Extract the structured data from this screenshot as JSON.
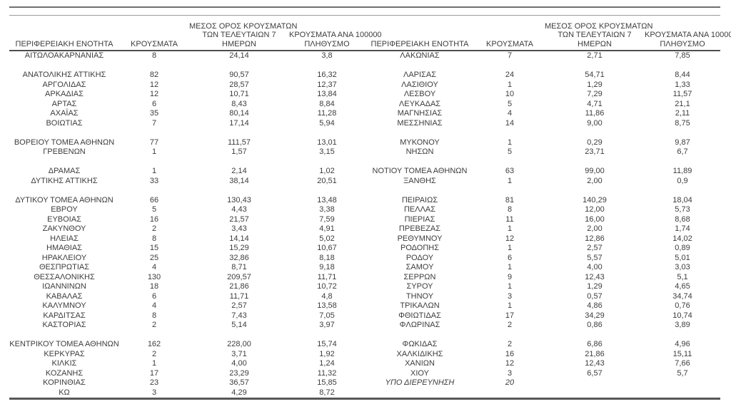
{
  "table": {
    "headers": {
      "region": "ΠΕΡΙΦΕΡΕΙΑΚΗ ΕΝΟΤΗΤΑ",
      "cases": "ΚΡΟΥΣΜΑΤΑ",
      "avg7_line1": "ΜΕΣΟΣ ΟΡΟΣ ΚΡΟΥΣΜΑΤΩΝ",
      "avg7_line2": "ΤΩΝ ΤΕΛΕΥΤΑΙΩΝ 7",
      "avg7_line3": "ΗΜΕΡΩΝ",
      "per100k_line1": "ΚΡΟΥΣΜΑΤΑ ΑΝΑ 100000",
      "per100k_line2": "ΠΛΗΘΥΣΜΟ"
    },
    "left_rows": [
      [
        "ΑΙΤΩΛΟΑΚΑΡΝΑΝΙΑΣ",
        "8",
        "24,14",
        "3,8"
      ],
      [],
      [
        "ΑΝΑΤΟΛΙΚΗΣ ΑΤΤΙΚΗΣ",
        "82",
        "90,57",
        "16,32"
      ],
      [
        "ΑΡΓΟΛΙΔΑΣ",
        "12",
        "28,57",
        "12,37"
      ],
      [
        "ΑΡΚΑΔΙΑΣ",
        "12",
        "10,71",
        "13,84"
      ],
      [
        "ΑΡΤΑΣ",
        "6",
        "8,43",
        "8,84"
      ],
      [
        "ΑΧΑΪΑΣ",
        "35",
        "80,14",
        "11,28"
      ],
      [
        "ΒΟΙΩΤΙΑΣ",
        "7",
        "17,14",
        "5,94"
      ],
      [],
      [
        "ΒΟΡΕΙΟΥ ΤΟΜΕΑ ΑΘΗΝΩΝ",
        "77",
        "111,57",
        "13,01"
      ],
      [
        "ΓΡΕΒΕΝΩΝ",
        "1",
        "1,57",
        "3,15"
      ],
      [],
      [
        "ΔΡΑΜΑΣ",
        "1",
        "2,14",
        "1,02"
      ],
      [
        "ΔΥΤΙΚΗΣ ΑΤΤΙΚΗΣ",
        "33",
        "38,14",
        "20,51"
      ],
      [],
      [
        "ΔΥΤΙΚΟΥ ΤΟΜΕΑ ΑΘΗΝΩΝ",
        "66",
        "130,43",
        "13,48"
      ],
      [
        "ΕΒΡΟΥ",
        "5",
        "4,43",
        "3,38"
      ],
      [
        "ΕΥΒΟΙΑΣ",
        "16",
        "21,57",
        "7,59"
      ],
      [
        "ΖΑΚΥΝΘΟΥ",
        "2",
        "3,43",
        "4,91"
      ],
      [
        "ΗΛΕΙΑΣ",
        "8",
        "14,14",
        "5,02"
      ],
      [
        "ΗΜΑΘΙΑΣ",
        "15",
        "15,29",
        "10,67"
      ],
      [
        "ΗΡΑΚΛΕΙΟΥ",
        "25",
        "32,86",
        "8,18"
      ],
      [
        "ΘΕΣΠΡΩΤΙΑΣ",
        "4",
        "8,71",
        "9,18"
      ],
      [
        "ΘΕΣΣΑΛΟΝΙΚΗΣ",
        "130",
        "209,57",
        "11,71"
      ],
      [
        "ΙΩΑΝΝΙΝΩΝ",
        "18",
        "21,86",
        "10,72"
      ],
      [
        "ΚΑΒΑΛΑΣ",
        "6",
        "11,71",
        "4,8"
      ],
      [
        "ΚΑΛΥΜΝΟΥ",
        "4",
        "2,57",
        "13,58"
      ],
      [
        "ΚΑΡΔΙΤΣΑΣ",
        "8",
        "7,43",
        "7,05"
      ],
      [
        "ΚΑΣΤΟΡΙΑΣ",
        "2",
        "5,14",
        "3,97"
      ],
      [],
      [
        "ΚΕΝΤΡΙΚΟΥ ΤΟΜΕΑ ΑΘΗΝΩΝ",
        "162",
        "228,00",
        "15,74"
      ],
      [
        "ΚΕΡΚΥΡΑΣ",
        "2",
        "3,71",
        "1,92"
      ],
      [
        "ΚΙΛΚΙΣ",
        "1",
        "4,00",
        "1,24"
      ],
      [
        "ΚΟΖΑΝΗΣ",
        "17",
        "23,29",
        "11,32"
      ],
      [
        "ΚΟΡΙΝΘΙΑΣ",
        "23",
        "36,57",
        "15,85"
      ],
      [
        "ΚΩ",
        "3",
        "4,29",
        "8,72"
      ]
    ],
    "right_rows": [
      [
        "ΛΑΚΩΝΙΑΣ",
        "7",
        "2,71",
        "7,85"
      ],
      [],
      [
        "ΛΑΡΙΣΑΣ",
        "24",
        "54,71",
        "8,44"
      ],
      [
        "ΛΑΣΙΘΙΟΥ",
        "1",
        "1,29",
        "1,33"
      ],
      [
        "ΛΕΣΒΟΥ",
        "10",
        "7,29",
        "11,57"
      ],
      [
        "ΛΕΥΚΑΔΑΣ",
        "5",
        "4,71",
        "21,1"
      ],
      [
        "ΜΑΓΝΗΣΙΑΣ",
        "4",
        "11,86",
        "2,11"
      ],
      [
        "ΜΕΣΣΗΝΙΑΣ",
        "14",
        "9,00",
        "8,75"
      ],
      [],
      [
        "ΜΥΚΟΝΟΥ",
        "1",
        "0,29",
        "9,87"
      ],
      [
        "ΝΗΣΩΝ",
        "5",
        "23,71",
        "6,7"
      ],
      [],
      [
        "ΝΟΤΙΟΥ ΤΟΜΕΑ ΑΘΗΝΩΝ",
        "63",
        "99,00",
        "11,89"
      ],
      [
        "ΞΑΝΘΗΣ",
        "1",
        "2,00",
        "0,9"
      ],
      [],
      [
        "ΠΕΙΡΑΙΩΣ",
        "81",
        "140,29",
        "18,04"
      ],
      [
        "ΠΕΛΛΑΣ",
        "8",
        "12,00",
        "5,73"
      ],
      [
        "ΠΙΕΡΙΑΣ",
        "11",
        "16,00",
        "8,68"
      ],
      [
        "ΠΡΕΒΕΖΑΣ",
        "1",
        "2,00",
        "1,74"
      ],
      [
        "ΡΕΘΥΜΝΟΥ",
        "12",
        "12,86",
        "14,02"
      ],
      [
        "ΡΟΔΟΠΗΣ",
        "1",
        "2,57",
        "0,89"
      ],
      [
        "ΡΟΔΟΥ",
        "6",
        "5,57",
        "5,01"
      ],
      [
        "ΣΑΜΟΥ",
        "1",
        "4,00",
        "3,03"
      ],
      [
        "ΣΕΡΡΩΝ",
        "9",
        "12,43",
        "5,1"
      ],
      [
        "ΣΥΡΟΥ",
        "1",
        "1,29",
        "4,65"
      ],
      [
        "ΤΗΝΟΥ",
        "3",
        "0,57",
        "34,74"
      ],
      [
        "ΤΡΙΚΑΛΩΝ",
        "1",
        "4,86",
        "0,76"
      ],
      [
        "ΦΘΙΩΤΙΔΑΣ",
        "17",
        "34,29",
        "10,74"
      ],
      [
        "ΦΛΩΡΙΝΑΣ",
        "2",
        "0,86",
        "3,89"
      ],
      [],
      [
        "ΦΩΚΙΔΑΣ",
        "2",
        "6,86",
        "4,96"
      ],
      [
        "ΧΑΛΚΙΔΙΚΗΣ",
        "16",
        "21,86",
        "15,11"
      ],
      [
        "ΧΑΝΙΩΝ",
        "12",
        "12,43",
        "7,66"
      ],
      [
        "ΧΙΟΥ",
        "3",
        "6,57",
        "5,7"
      ],
      [
        "ΥΠΟ ΔΙΕΡΕΥΝΗΣΗ",
        "20",
        "",
        "",
        "italic"
      ],
      []
    ]
  },
  "colors": {
    "text": "#3d3d3d",
    "top_rule": "#6f6f6f",
    "header_underline": "#4f4f4f",
    "bottom_rule": "#575757"
  }
}
